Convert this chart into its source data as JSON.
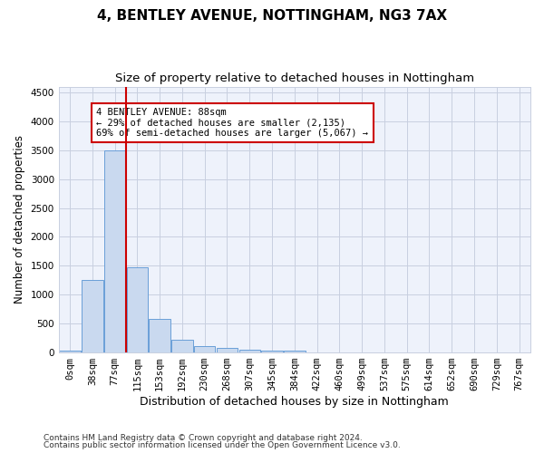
{
  "title1": "4, BENTLEY AVENUE, NOTTINGHAM, NG3 7AX",
  "title2": "Size of property relative to detached houses in Nottingham",
  "xlabel": "Distribution of detached houses by size in Nottingham",
  "ylabel": "Number of detached properties",
  "footer1": "Contains HM Land Registry data © Crown copyright and database right 2024.",
  "footer2": "Contains public sector information licensed under the Open Government Licence v3.0.",
  "bar_labels": [
    "0sqm",
    "38sqm",
    "77sqm",
    "115sqm",
    "153sqm",
    "192sqm",
    "230sqm",
    "268sqm",
    "307sqm",
    "345sqm",
    "384sqm",
    "422sqm",
    "460sqm",
    "499sqm",
    "537sqm",
    "575sqm",
    "614sqm",
    "652sqm",
    "690sqm",
    "729sqm",
    "767sqm"
  ],
  "bar_values": [
    25,
    1250,
    3500,
    1480,
    580,
    220,
    110,
    75,
    50,
    25,
    25,
    8,
    0,
    0,
    0,
    8,
    0,
    0,
    0,
    0,
    0
  ],
  "bar_color": "#c9d9ef",
  "bar_edge_color": "#6a9fd8",
  "ylim": [
    0,
    4600
  ],
  "yticks": [
    0,
    500,
    1000,
    1500,
    2000,
    2500,
    3000,
    3500,
    4000,
    4500
  ],
  "red_line_x": 2.5,
  "red_line_color": "#cc0000",
  "annotation_text": "4 BENTLEY AVENUE: 88sqm\n← 29% of detached houses are smaller (2,135)\n69% of semi-detached houses are larger (5,067) →",
  "bg_color": "#eef2fb",
  "grid_color": "#c8cfe0",
  "title1_fontsize": 11,
  "title2_fontsize": 9.5,
  "xlabel_fontsize": 9,
  "ylabel_fontsize": 8.5,
  "tick_fontsize": 7.5,
  "footer_fontsize": 6.5
}
